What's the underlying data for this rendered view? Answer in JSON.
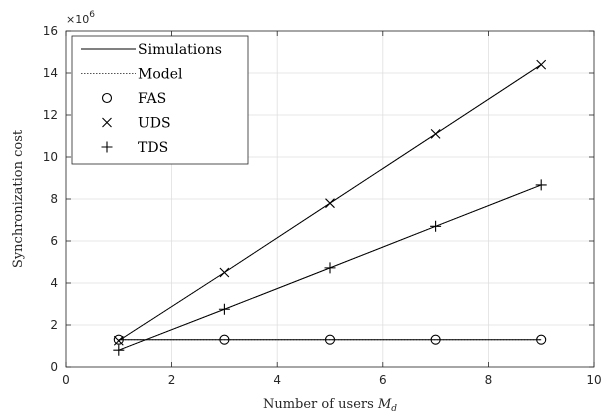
{
  "chart_data": {
    "type": "line",
    "xlabel": "Number of users",
    "xlabel_sub_var": "M",
    "xlabel_sub_idx": "d",
    "ylabel": "Synchronization cost",
    "exponent_base": "×10",
    "exponent_power": "6",
    "xlim": [
      0,
      10
    ],
    "ylim": [
      0,
      16
    ],
    "xticks": [
      "0",
      "2",
      "4",
      "6",
      "8",
      "10"
    ],
    "yticks": [
      "0",
      "2",
      "4",
      "6",
      "8",
      "10",
      "12",
      "14",
      "16"
    ],
    "grid": true,
    "legend_position": "top-left",
    "legend": [
      "Simulations",
      "Model",
      "FAS",
      "UDS",
      "TDS"
    ],
    "x": [
      1,
      3,
      5,
      7,
      9
    ],
    "series": [
      {
        "name": "FAS",
        "marker": "circle",
        "simulation": [
          1.3,
          1.3,
          1.3,
          1.3,
          1.3
        ],
        "model": [
          1.3,
          1.3,
          1.3,
          1.3,
          1.3
        ]
      },
      {
        "name": "UDS",
        "marker": "x",
        "simulation": [
          1.25,
          4.5,
          7.8,
          11.1,
          14.4
        ],
        "model": [
          1.25,
          4.5,
          7.8,
          11.1,
          14.4
        ]
      },
      {
        "name": "TDS",
        "marker": "plus",
        "simulation": [
          0.8,
          2.75,
          4.72,
          6.7,
          8.67
        ],
        "model": [
          0.8,
          2.75,
          4.72,
          6.7,
          8.67
        ]
      }
    ]
  }
}
